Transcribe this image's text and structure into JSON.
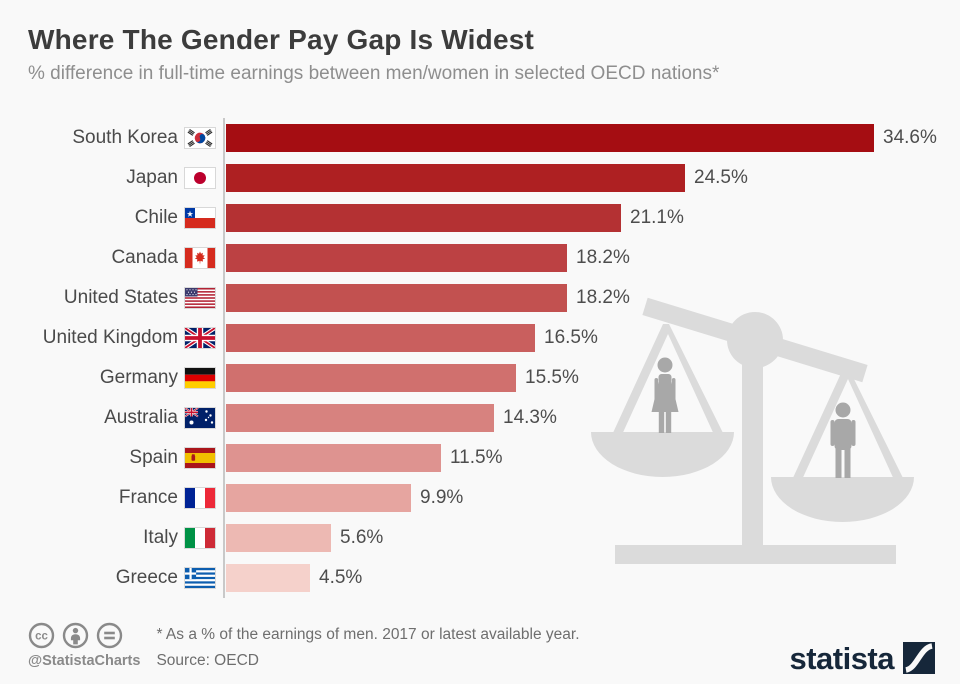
{
  "title": "Where The Gender Pay Gap Is Widest",
  "subtitle": "% difference in full-time earnings between men/women in selected OECD nations*",
  "chart_data": {
    "type": "bar",
    "orientation": "horizontal",
    "title": "Where The Gender Pay Gap Is Widest",
    "xlabel": "% difference in full-time earnings between men and women",
    "unit": "%",
    "xlim": [
      0,
      37.5
    ],
    "grid": false,
    "categories": [
      "South Korea",
      "Japan",
      "Chile",
      "Canada",
      "United States",
      "United Kingdom",
      "Germany",
      "Australia",
      "Spain",
      "France",
      "Italy",
      "Greece"
    ],
    "values": [
      34.6,
      24.5,
      21.1,
      18.2,
      18.2,
      16.5,
      15.5,
      14.3,
      11.5,
      9.9,
      5.6,
      4.5
    ],
    "value_labels": [
      "34.6%",
      "24.5%",
      "21.1%",
      "18.2%",
      "18.2%",
      "16.5%",
      "15.5%",
      "14.3%",
      "11.5%",
      "9.9%",
      "5.6%",
      "4.5%"
    ],
    "flags": [
      "kr",
      "jp",
      "cl",
      "ca",
      "us",
      "gb",
      "de",
      "au",
      "es",
      "fr",
      "it",
      "gr"
    ],
    "bar_colors": [
      "#a50d12",
      "#ae2022",
      "#b43133",
      "#bc4143",
      "#c25150",
      "#c95f5e",
      "#d0706e",
      "#d7827f",
      "#de9390",
      "#e6a5a0",
      "#edb9b3",
      "#f5d1cb"
    ],
    "axis_color": "#c9c9c9"
  },
  "illustration": {
    "name": "unbalanced-scales-with-female-and-male-figures",
    "scale_color": "#dbdbdb",
    "figure_color": "#a8a8a8"
  },
  "footer": {
    "license_icons": [
      "cc-icon",
      "attribution-person-icon",
      "equals-icon"
    ],
    "handle": "@StatistaCharts",
    "footnote": "* As a % of the earnings of men. 2017 or latest available year.",
    "source": "Source: OECD",
    "brand": "statista",
    "brand_color": "#16273a"
  }
}
